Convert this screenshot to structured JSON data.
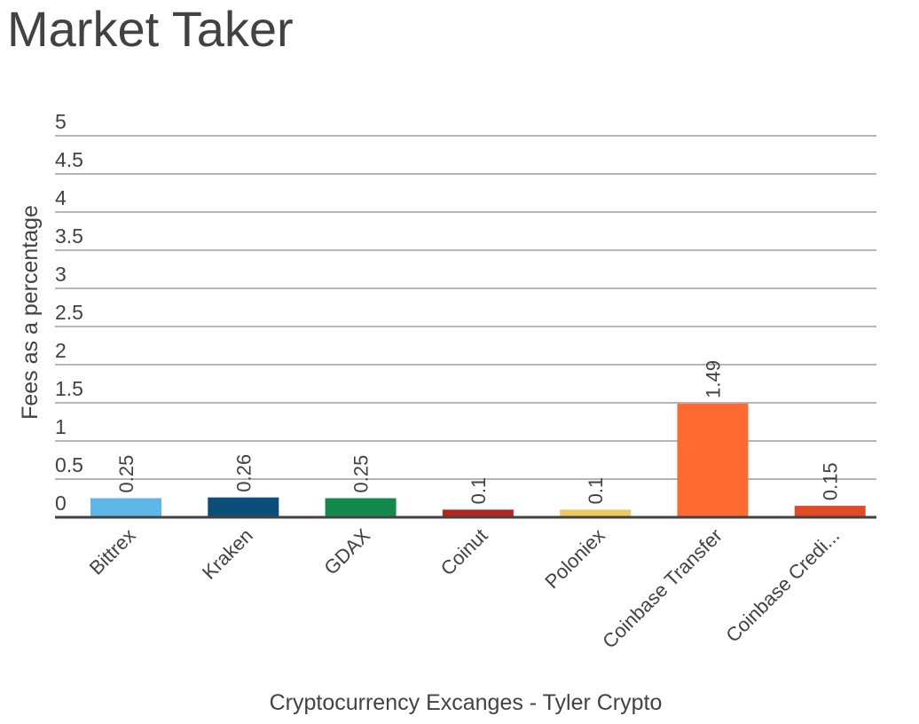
{
  "chart_data": {
    "type": "bar",
    "title": "Market Taker",
    "xlabel": "Cryptocurrency Excanges - Tyler Crypto",
    "ylabel": "Fees as a percentage",
    "ylim": [
      0,
      5
    ],
    "yticks": [
      "0",
      "0.5",
      "1",
      "1.5",
      "2",
      "2.5",
      "3",
      "3.5",
      "4",
      "4.5",
      "5"
    ],
    "yticks_values": [
      0,
      0.5,
      1,
      1.5,
      2,
      2.5,
      3,
      3.5,
      4,
      4.5,
      5
    ],
    "categories": [
      "Bittrex",
      "Kraken",
      "GDAX",
      "Coinut",
      "Poloniex",
      "Coinbase Transfer",
      "Coinbase Credi..."
    ],
    "values": [
      0.25,
      0.26,
      0.25,
      0.1,
      0.1,
      1.49,
      0.15
    ],
    "data_labels": [
      "0.25",
      "0.26",
      "0.25",
      "0.1",
      "0.1",
      "1.49",
      "0.15"
    ],
    "colors": [
      "#5DB7E8",
      "#0C4E7A",
      "#138A4C",
      "#B3261E",
      "#F0C862",
      "#FF6A33",
      "#E14B25"
    ],
    "grid": true,
    "legend": "none"
  }
}
